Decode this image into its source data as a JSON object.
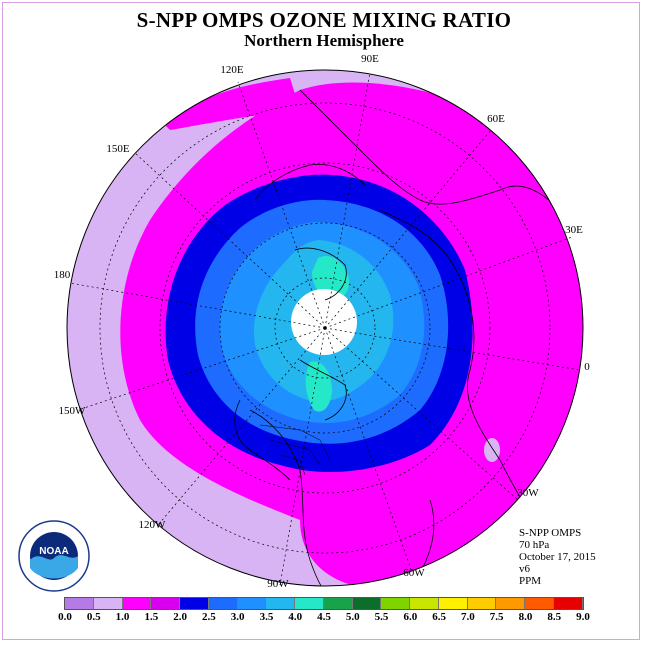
{
  "title": "S-NPP OMPS OZONE MIXING RATIO",
  "subtitle": "Northern Hemisphere",
  "lon_labels": [
    "90E",
    "60E",
    "30E",
    "0",
    "30W",
    "60W",
    "90W",
    "120W",
    "150W",
    "180",
    "150E",
    "120E"
  ],
  "info": {
    "instrument": "S-NPP OMPS",
    "level": "70 hPa",
    "date": "October 17, 2015",
    "version": "v6",
    "units": "PPM"
  },
  "logo_text": "NOAA",
  "colorbar": {
    "ticks": [
      "0.0",
      "0.5",
      "1.0",
      "1.5",
      "2.0",
      "2.5",
      "3.0",
      "3.5",
      "4.0",
      "4.5",
      "5.0",
      "5.5",
      "6.0",
      "6.5",
      "7.0",
      "7.5",
      "8.0",
      "8.5",
      "9.0"
    ],
    "colors": [
      "#b57ae6",
      "#d8b4f5",
      "#ff00ff",
      "#d900ef",
      "#0000e6",
      "#1e6bff",
      "#1e90ff",
      "#23b6ef",
      "#25e8c8",
      "#16a34a",
      "#0b6e2a",
      "#7fd400",
      "#c8e600",
      "#fff000",
      "#ffcc00",
      "#ff9900",
      "#ff5a00",
      "#e60000",
      "#8b5a2b"
    ]
  }
}
